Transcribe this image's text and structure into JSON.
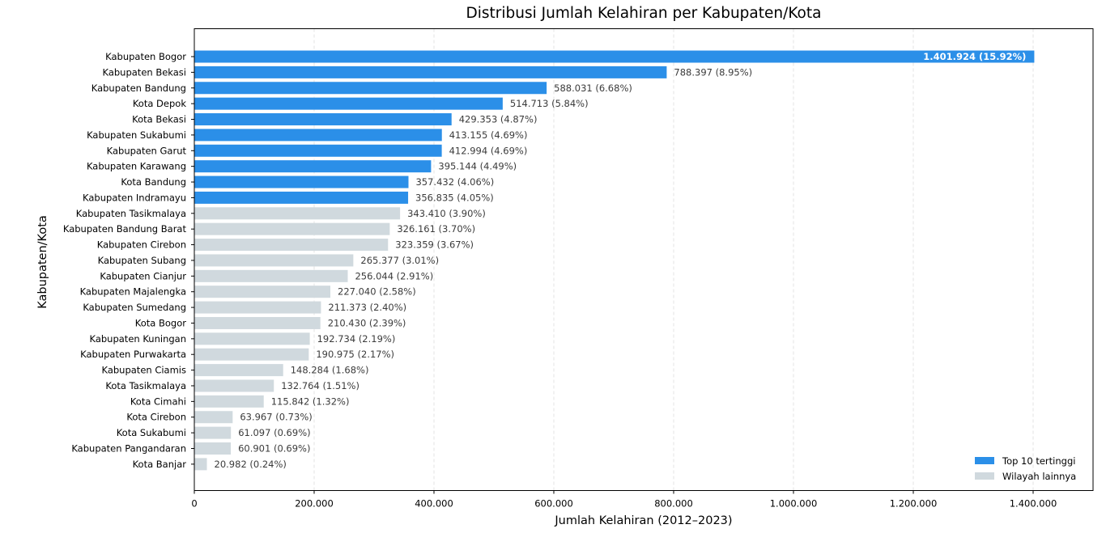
{
  "chart_data": {
    "type": "bar",
    "orientation": "horizontal",
    "title": "Distribusi Jumlah Kelahiran per Kabupaten/Kota",
    "xlabel": "Jumlah Kelahiran (2012–2023)",
    "ylabel": "Kabupaten/Kota",
    "xlim": [
      0,
      1500000
    ],
    "xticks": [
      0,
      200000,
      400000,
      600000,
      800000,
      1000000,
      1200000,
      1400000
    ],
    "xtick_labels": [
      "0",
      "200.000",
      "400.000",
      "600.000",
      "800.000",
      "1.000.000",
      "1.200.000",
      "1.400.000"
    ],
    "grid": "x-dashed",
    "legend_position": "bottom-right",
    "colors": {
      "top10": "#2b8fe8",
      "other": "#d0d9de",
      "label_text": "#3b3b3b"
    },
    "series": [
      {
        "name": "Top 10 tertinggi",
        "color_key": "top10"
      },
      {
        "name": "Wilayah lainnya",
        "color_key": "other"
      }
    ],
    "categories": [
      "Kabupaten Bogor",
      "Kabupaten Bekasi",
      "Kabupaten Bandung",
      "Kota Depok",
      "Kota Bekasi",
      "Kabupaten Sukabumi",
      "Kabupaten Garut",
      "Kabupaten Karawang",
      "Kota Bandung",
      "Kabupaten Indramayu",
      "Kabupaten Tasikmalaya",
      "Kabupaten Bandung Barat",
      "Kabupaten Cirebon",
      "Kabupaten Subang",
      "Kabupaten Cianjur",
      "Kabupaten Majalengka",
      "Kabupaten Sumedang",
      "Kota Bogor",
      "Kabupaten Kuningan",
      "Kabupaten Purwakarta",
      "Kabupaten Ciamis",
      "Kota Tasikmalaya",
      "Kota Cimahi",
      "Kota Cirebon",
      "Kota Sukabumi",
      "Kabupaten Pangandaran",
      "Kota Banjar"
    ],
    "values": [
      1401924,
      788397,
      588031,
      514713,
      429353,
      413155,
      412994,
      395144,
      357432,
      356835,
      343410,
      326161,
      323359,
      265377,
      256044,
      227040,
      211373,
      210430,
      192734,
      190975,
      148284,
      132764,
      115842,
      63967,
      61097,
      60901,
      20982
    ],
    "groups": [
      "top10",
      "top10",
      "top10",
      "top10",
      "top10",
      "top10",
      "top10",
      "top10",
      "top10",
      "top10",
      "other",
      "other",
      "other",
      "other",
      "other",
      "other",
      "other",
      "other",
      "other",
      "other",
      "other",
      "other",
      "other",
      "other",
      "other",
      "other",
      "other"
    ],
    "data_labels": [
      "1.401.924 (15.92%)",
      "788.397 (8.95%)",
      "588.031 (6.68%)",
      "514.713 (5.84%)",
      "429.353 (4.87%)",
      "413.155 (4.69%)",
      "412.994 (4.69%)",
      "395.144 (4.49%)",
      "357.432 (4.06%)",
      "356.835 (4.05%)",
      "343.410 (3.90%)",
      "326.161 (3.70%)",
      "323.359 (3.67%)",
      "265.377 (3.01%)",
      "256.044 (2.91%)",
      "227.040 (2.58%)",
      "211.373 (2.40%)",
      "210.430 (2.39%)",
      "192.734 (2.19%)",
      "190.975 (2.17%)",
      "148.284 (1.68%)",
      "132.764 (1.51%)",
      "115.842 (1.32%)",
      "63.967 (0.73%)",
      "61.097 (0.69%)",
      "60.901 (0.69%)",
      "20.982 (0.24%)"
    ]
  }
}
